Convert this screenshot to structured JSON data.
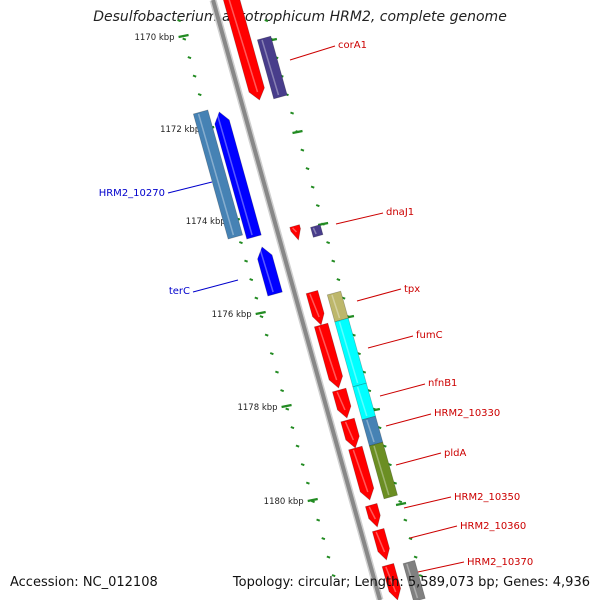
{
  "title": "Desulfobacterium autotrophicum HRM2, complete genome",
  "footer": {
    "accession": "Accession: NC_012108",
    "summary": "Topology: circular; Length: 5,589,073 bp; Genes: 4,936"
  },
  "colors": {
    "forward_red": "#ff0000",
    "reverse_blue": "#0000ff",
    "steel_blue": "#4682b4",
    "dark_slate": "#483d8b",
    "khaki": "#bdb76b",
    "cyan": "#00ffff",
    "olive": "#6b8e23",
    "gray": "#808080",
    "tick_green": "#228b22",
    "backbone": "#888888"
  },
  "ticks": [
    {
      "label": "1170 kbp"
    },
    {
      "label": "1172 kbp"
    },
    {
      "label": "1174 kbp"
    },
    {
      "label": "1176 kbp"
    },
    {
      "label": "1178 kbp"
    },
    {
      "label": "1180 kbp"
    }
  ],
  "gene_labels": [
    {
      "name": "corA1",
      "color": "#cc0000"
    },
    {
      "name": "HRM2_10270",
      "color": "#0000cc"
    },
    {
      "name": "dnaJ1",
      "color": "#cc0000"
    },
    {
      "name": "terC",
      "color": "#0000cc"
    },
    {
      "name": "tpx",
      "color": "#cc0000"
    },
    {
      "name": "fumC",
      "color": "#cc0000"
    },
    {
      "name": "nfnB1",
      "color": "#cc0000"
    },
    {
      "name": "HRM2_10330",
      "color": "#cc0000"
    },
    {
      "name": "pldA",
      "color": "#cc0000"
    },
    {
      "name": "HRM2_10350",
      "color": "#cc0000"
    },
    {
      "name": "HRM2_10360",
      "color": "#cc0000"
    },
    {
      "name": "HRM2_10370",
      "color": "#cc0000"
    }
  ]
}
